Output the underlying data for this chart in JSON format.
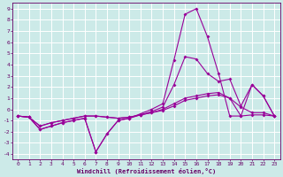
{
  "xlabel": "Windchill (Refroidissement éolien,°C)",
  "background_color": "#cceae8",
  "grid_color": "#ffffff",
  "line_color": "#990099",
  "xlim": [
    -0.5,
    23.5
  ],
  "ylim": [
    -4.5,
    9.5
  ],
  "xticks": [
    0,
    1,
    2,
    3,
    4,
    5,
    6,
    7,
    8,
    9,
    10,
    11,
    12,
    13,
    14,
    15,
    16,
    17,
    18,
    19,
    20,
    21,
    22,
    23
  ],
  "yticks": [
    -4,
    -3,
    -2,
    -1,
    0,
    1,
    2,
    3,
    4,
    5,
    6,
    7,
    8,
    9
  ],
  "curve1_x": [
    0,
    1,
    2,
    3,
    4,
    5,
    6,
    7,
    8,
    9,
    10,
    11,
    12,
    13,
    14,
    15,
    16,
    17,
    18,
    19,
    20,
    21,
    22,
    23
  ],
  "curve1_y": [
    -0.6,
    -0.7,
    -1.8,
    -1.5,
    -1.2,
    -1.0,
    -0.8,
    -3.8,
    -2.2,
    -1.0,
    -0.8,
    -0.5,
    -0.2,
    0.2,
    2.2,
    4.7,
    4.5,
    3.2,
    2.5,
    2.7,
    0.3,
    2.2,
    1.2,
    -0.6
  ],
  "curve2_x": [
    0,
    1,
    2,
    3,
    4,
    5,
    6,
    7,
    8,
    9,
    10,
    11,
    12,
    13,
    14,
    15,
    16,
    17,
    18,
    19,
    20,
    21,
    22,
    23
  ],
  "curve2_y": [
    -0.6,
    -0.7,
    -1.8,
    -1.5,
    -1.2,
    -1.0,
    -0.8,
    -3.8,
    -2.2,
    -1.0,
    -0.8,
    -0.4,
    0.0,
    0.5,
    4.4,
    8.5,
    9.0,
    6.5,
    3.2,
    -0.6,
    -0.6,
    2.2,
    1.2,
    -0.6
  ],
  "curve3_x": [
    0,
    1,
    2,
    3,
    4,
    5,
    6,
    7,
    8,
    9,
    10,
    11,
    12,
    13,
    14,
    15,
    16,
    17,
    18,
    19,
    20,
    21,
    22,
    23
  ],
  "curve3_y": [
    -0.6,
    -0.7,
    -1.5,
    -1.2,
    -1.0,
    -0.8,
    -0.6,
    -0.6,
    -0.7,
    -0.8,
    -0.7,
    -0.5,
    -0.3,
    -0.1,
    0.3,
    0.8,
    1.0,
    1.2,
    1.3,
    1.0,
    -0.6,
    -0.5,
    -0.5,
    -0.6
  ],
  "curve4_x": [
    0,
    1,
    2,
    3,
    4,
    5,
    6,
    7,
    8,
    9,
    10,
    11,
    12,
    13,
    14,
    15,
    16,
    17,
    18,
    19,
    20,
    21,
    22,
    23
  ],
  "curve4_y": [
    -0.6,
    -0.7,
    -1.5,
    -1.2,
    -1.0,
    -0.8,
    -0.6,
    -0.6,
    -0.7,
    -0.8,
    -0.7,
    -0.5,
    -0.3,
    0.0,
    0.5,
    1.0,
    1.2,
    1.4,
    1.5,
    1.0,
    0.2,
    -0.3,
    -0.3,
    -0.6
  ]
}
